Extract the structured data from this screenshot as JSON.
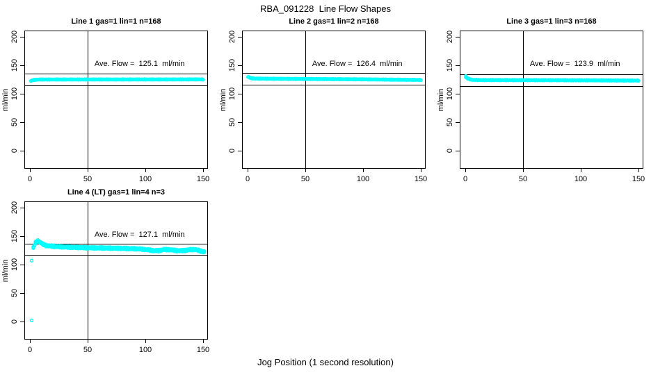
{
  "title": "RBA_091228  Line Flow Shapes",
  "xlabel": "Jog Position (1 second resolution)",
  "ylabel": "ml/min",
  "colors": {
    "points": "#00ffff",
    "axis": "#000000",
    "background": "#ffffff"
  },
  "axes": {
    "x_ticks": [
      0,
      50,
      100,
      150
    ],
    "x_tick_labels": [
      "0",
      "50",
      "100",
      "150"
    ],
    "y_ticks": [
      0,
      50,
      100,
      150,
      200
    ],
    "y_tick_labels": [
      "0",
      "50",
      "100",
      "150",
      "200"
    ],
    "x_range": [
      -6,
      156
    ],
    "y_range": [
      -33,
      210
    ],
    "grid": false
  },
  "chart_data": [
    {
      "type": "scatter",
      "title": "Line 1 gas=1 lin=1 n=168",
      "ave_label": "Ave. Flow =  125.1  ml/min",
      "ave_flow": 125.1,
      "n": 168,
      "vline_x": 50,
      "ref_lines": [
        135.1,
        115.1
      ],
      "n_points": 168,
      "passes": 1,
      "jitter": 0.5,
      "outliers": [],
      "profile": [
        [
          1,
          122.5
        ],
        [
          2,
          123.5
        ],
        [
          4,
          124.5
        ],
        [
          8,
          125.0
        ],
        [
          80,
          125.1
        ],
        [
          150,
          125.2
        ]
      ]
    },
    {
      "type": "scatter",
      "title": "Line 2 gas=1 lin=2 n=168",
      "ave_label": "Ave. Flow =  126.4  ml/min",
      "ave_flow": 126.4,
      "n": 168,
      "vline_x": 50,
      "ref_lines": [
        136.4,
        116.4
      ],
      "n_points": 168,
      "passes": 1,
      "jitter": 0.5,
      "outliers": [],
      "profile": [
        [
          0.5,
          129.5
        ],
        [
          2,
          128.0
        ],
        [
          4,
          127.0
        ],
        [
          10,
          126.5
        ],
        [
          50,
          126.0
        ],
        [
          100,
          125.3
        ],
        [
          150,
          124.3
        ]
      ]
    },
    {
      "type": "scatter",
      "title": "Line 3 gas=1 lin=3 n=168",
      "ave_label": "Ave. Flow =  123.9  ml/min",
      "ave_flow": 123.9,
      "n": 168,
      "vline_x": 50,
      "ref_lines": [
        133.9,
        113.9
      ],
      "n_points": 168,
      "passes": 1,
      "jitter": 0.5,
      "outliers": [
        [
          0.5,
          131
        ]
      ],
      "profile": [
        [
          0.5,
          129.0
        ],
        [
          1.5,
          127.5
        ],
        [
          3,
          126.0
        ],
        [
          6,
          124.5
        ],
        [
          15,
          124.0
        ],
        [
          80,
          123.8
        ],
        [
          150,
          123.2
        ]
      ]
    },
    {
      "type": "scatter",
      "title": "Line 4 (LT) gas=1 lin=4 n=3",
      "ave_label": "Ave. Flow =  127.1  ml/min",
      "ave_flow": 127.1,
      "n": 3,
      "vline_x": 50,
      "ref_lines": [
        137.1,
        117.1
      ],
      "n_points": 150,
      "passes": 3,
      "jitter": 0.8,
      "outliers": [
        [
          1.5,
          2
        ],
        [
          1.5,
          107
        ]
      ],
      "profile": [
        [
          3,
          130
        ],
        [
          4,
          134
        ],
        [
          5,
          139
        ],
        [
          6,
          141
        ],
        [
          7,
          141.5
        ],
        [
          9,
          139
        ],
        [
          11,
          136
        ],
        [
          14,
          133.5
        ],
        [
          18,
          132.5
        ],
        [
          25,
          131.5
        ],
        [
          35,
          130.5
        ],
        [
          50,
          129.5
        ],
        [
          65,
          129
        ],
        [
          80,
          128.5
        ],
        [
          95,
          127.5
        ],
        [
          102,
          126
        ],
        [
          107,
          124.5
        ],
        [
          112,
          124.5
        ],
        [
          116,
          126.5
        ],
        [
          122,
          126
        ],
        [
          127,
          124.5
        ],
        [
          133,
          124.5
        ],
        [
          138,
          126
        ],
        [
          143,
          126.5
        ],
        [
          146,
          125
        ],
        [
          149,
          123
        ],
        [
          151,
          122.5
        ]
      ]
    }
  ]
}
